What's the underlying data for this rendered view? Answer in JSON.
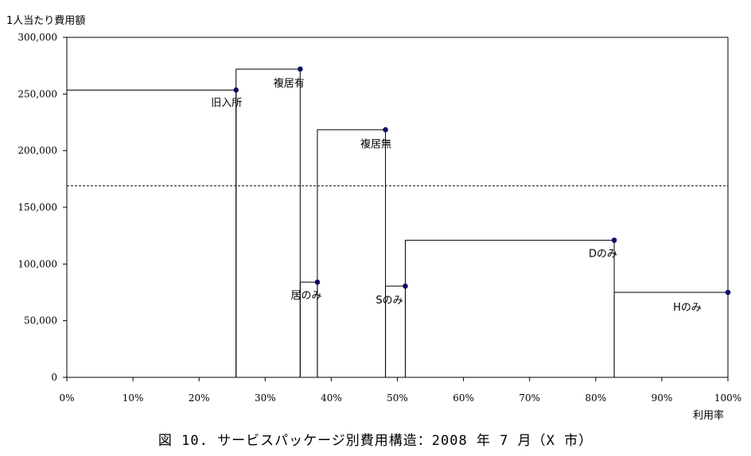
{
  "chart_data": {
    "type": "line",
    "ylabel": "1人当たり費用額",
    "xlabel": "利用率",
    "caption": "図 10. サービスパッケージ別費用構造：2008 年 7 月（X 市）",
    "ylim": [
      0,
      300000
    ],
    "xlim": [
      0,
      100
    ],
    "yticks": [
      "0",
      "50,000",
      "100,000",
      "150,000",
      "200,000",
      "250,000",
      "300,000"
    ],
    "ytick_values": [
      0,
      50000,
      100000,
      150000,
      200000,
      250000,
      300000
    ],
    "xticks": [
      "0%",
      "10%",
      "20%",
      "30%",
      "40%",
      "50%",
      "60%",
      "70%",
      "80%",
      "90%",
      "100%"
    ],
    "xtick_values": [
      0,
      10,
      20,
      30,
      40,
      50,
      60,
      70,
      80,
      90,
      100
    ],
    "reference_line": 169000,
    "points": [
      {
        "label": "旧入所",
        "x_start": 0,
        "x": 25.6,
        "y": 253500
      },
      {
        "label": "複居有",
        "x_start": 25.6,
        "x": 35.3,
        "y": 272000
      },
      {
        "label": "居のみ",
        "x_start": 35.3,
        "x": 37.9,
        "y": 84000
      },
      {
        "label": "複居無",
        "x_start": 37.9,
        "x": 48.2,
        "y": 218500
      },
      {
        "label": "Sのみ",
        "x_start": 48.2,
        "x": 51.2,
        "y": 80500
      },
      {
        "label": "Dのみ",
        "x_start": 51.2,
        "x": 82.8,
        "y": 121000
      },
      {
        "label": "Hのみ",
        "x_start": 82.8,
        "x": 100,
        "y": 75000
      }
    ],
    "colors": {
      "marker": "#10106e",
      "line": "#000000",
      "axis": "#000000"
    }
  }
}
